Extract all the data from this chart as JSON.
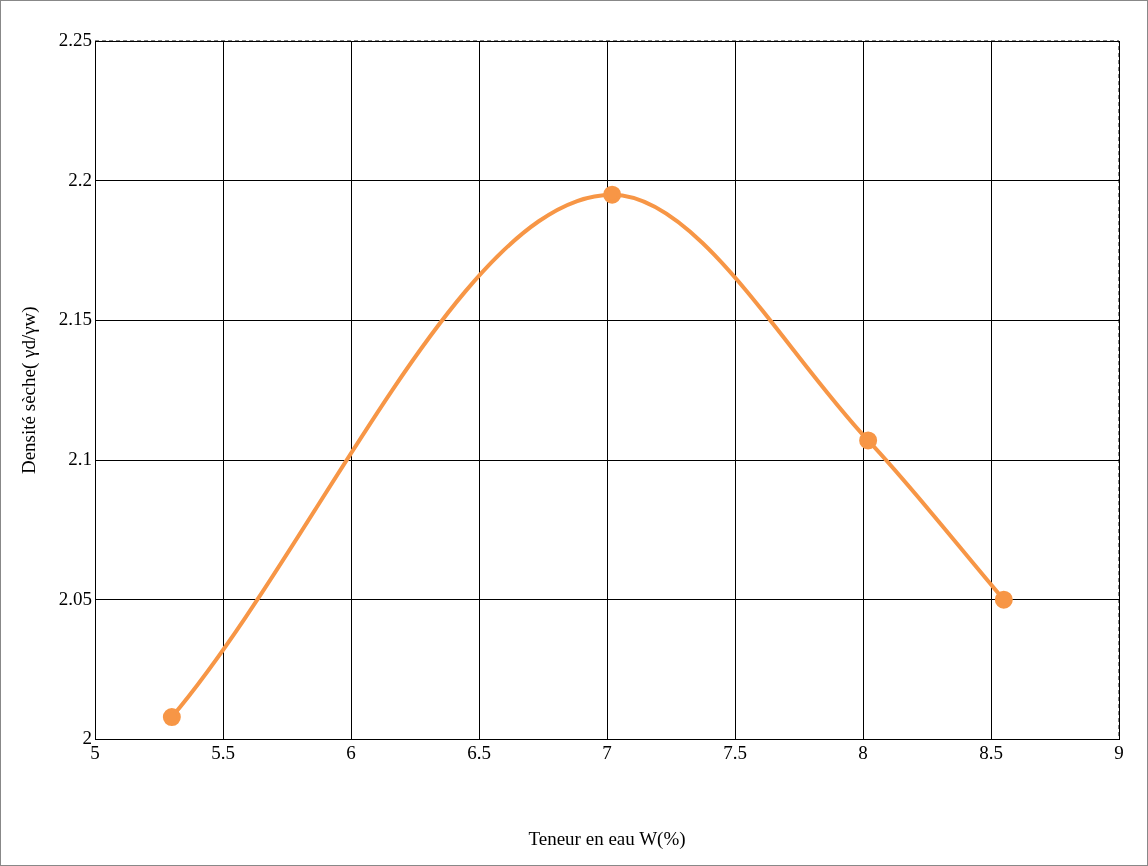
{
  "chart_data": {
    "type": "line",
    "xlabel": "Teneur en eau W(%)",
    "ylabel": "Densité sèche( γd/γw)",
    "x": [
      5.3,
      7.02,
      8.02,
      8.55
    ],
    "series": [
      {
        "color": "#f79646",
        "values": [
          2.008,
          2.195,
          2.107,
          2.05
        ]
      }
    ],
    "xlim": [
      5,
      9
    ],
    "xticks": [
      5,
      5.5,
      6,
      6.5,
      7,
      7.5,
      8,
      8.5,
      9
    ],
    "ylim": [
      2,
      2.25
    ],
    "yticks": [
      2,
      2.05,
      2.1,
      2.15,
      2.2,
      2.25
    ],
    "grid": true,
    "legend": false,
    "marker": "circle",
    "line_style": "solid"
  }
}
